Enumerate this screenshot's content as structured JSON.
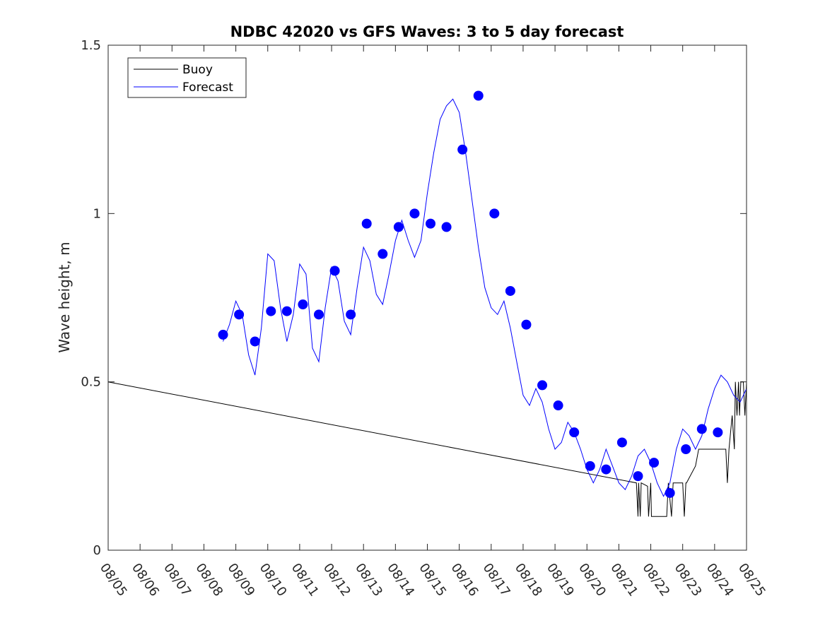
{
  "chart_data": {
    "type": "line",
    "title": "NDBC 42020 vs GFS Waves: 3 to 5 day forecast",
    "xlabel": "",
    "ylabel": "Wave height, m",
    "x_unit": "days since 08/05",
    "xlim": [
      0,
      20
    ],
    "ylim": [
      0,
      1.5
    ],
    "yticks": [
      0,
      0.5,
      1,
      1.5
    ],
    "ytick_labels": [
      "0",
      "0.5",
      "1",
      "1.5"
    ],
    "xtick_labels": [
      "08/05",
      "08/06",
      "08/07",
      "08/08",
      "08/09",
      "08/10",
      "08/11",
      "08/12",
      "08/13",
      "08/14",
      "08/15",
      "08/16",
      "08/17",
      "08/18",
      "08/19",
      "08/20",
      "08/21",
      "08/22",
      "08/23",
      "08/24",
      "08/25"
    ],
    "legend": {
      "location": "top-left",
      "entries": [
        {
          "name": "Buoy",
          "color": "#000000"
        },
        {
          "name": "Forecast",
          "color": "#0000ff"
        }
      ]
    },
    "series": [
      {
        "name": "Buoy",
        "color": "#000000",
        "x": [
          0.0,
          16.55,
          16.6,
          16.62,
          16.67,
          16.7,
          16.9,
          16.93,
          17.0,
          17.02,
          17.5,
          17.55,
          17.65,
          17.7,
          18.0,
          18.05,
          18.1,
          18.12,
          18.4,
          18.5,
          18.6,
          18.9,
          19.0,
          19.35,
          19.4,
          19.45,
          19.5,
          19.55,
          19.62,
          19.65,
          19.7,
          19.75,
          19.78,
          19.82,
          19.9,
          19.95,
          20.0
        ],
        "y": [
          0.5,
          0.2,
          0.1,
          0.2,
          0.1,
          0.2,
          0.19,
          0.1,
          0.2,
          0.1,
          0.1,
          0.2,
          0.1,
          0.2,
          0.2,
          0.1,
          0.2,
          0.2,
          0.25,
          0.3,
          0.3,
          0.3,
          0.3,
          0.3,
          0.2,
          0.3,
          0.35,
          0.4,
          0.3,
          0.5,
          0.4,
          0.5,
          0.4,
          0.5,
          0.5,
          0.4,
          0.5
        ]
      },
      {
        "name": "Forecast",
        "color": "#0000ff",
        "x": [
          3.6,
          3.8,
          4.0,
          4.2,
          4.4,
          4.6,
          4.8,
          5.0,
          5.2,
          5.4,
          5.6,
          5.8,
          6.0,
          6.2,
          6.4,
          6.6,
          6.8,
          7.0,
          7.2,
          7.4,
          7.6,
          7.8,
          8.0,
          8.2,
          8.4,
          8.6,
          8.8,
          9.0,
          9.2,
          9.4,
          9.6,
          9.8,
          10.0,
          10.2,
          10.4,
          10.6,
          10.8,
          11.0,
          11.2,
          11.4,
          11.6,
          11.8,
          12.0,
          12.2,
          12.4,
          12.6,
          12.8,
          13.0,
          13.2,
          13.4,
          13.6,
          13.8,
          14.0,
          14.2,
          14.4,
          14.6,
          14.8,
          15.0,
          15.2,
          15.4,
          15.6,
          15.8,
          16.0,
          16.2,
          16.4,
          16.6,
          16.8,
          17.0,
          17.2,
          17.4,
          17.6,
          17.8,
          18.0,
          18.2,
          18.4,
          18.6,
          18.8,
          19.0,
          19.2,
          19.4,
          19.6,
          19.8,
          20.0
        ],
        "y": [
          0.62,
          0.67,
          0.74,
          0.7,
          0.58,
          0.52,
          0.66,
          0.88,
          0.86,
          0.72,
          0.62,
          0.7,
          0.85,
          0.82,
          0.6,
          0.56,
          0.72,
          0.84,
          0.8,
          0.68,
          0.64,
          0.78,
          0.9,
          0.86,
          0.76,
          0.73,
          0.82,
          0.92,
          0.98,
          0.92,
          0.87,
          0.92,
          1.06,
          1.18,
          1.28,
          1.32,
          1.34,
          1.3,
          1.18,
          1.04,
          0.9,
          0.78,
          0.72,
          0.7,
          0.74,
          0.66,
          0.56,
          0.46,
          0.43,
          0.48,
          0.44,
          0.36,
          0.3,
          0.32,
          0.38,
          0.35,
          0.3,
          0.24,
          0.2,
          0.24,
          0.3,
          0.25,
          0.2,
          0.18,
          0.22,
          0.28,
          0.3,
          0.26,
          0.2,
          0.16,
          0.2,
          0.3,
          0.36,
          0.34,
          0.3,
          0.34,
          0.42,
          0.48,
          0.52,
          0.5,
          0.46,
          0.44,
          0.48
        ]
      }
    ],
    "markers": {
      "name": "Forecast points",
      "color": "#0000ff",
      "x": [
        3.6,
        4.1,
        4.6,
        5.1,
        5.6,
        6.1,
        6.6,
        7.1,
        7.6,
        8.1,
        8.6,
        9.1,
        9.6,
        10.1,
        10.6,
        11.1,
        11.6,
        12.1,
        12.6,
        13.1,
        13.6,
        14.1,
        14.6,
        15.1,
        15.6,
        16.1,
        16.6,
        17.1,
        17.6,
        18.1,
        18.6,
        19.1
      ],
      "y": [
        0.64,
        0.7,
        0.62,
        0.71,
        0.71,
        0.73,
        0.7,
        0.83,
        0.7,
        0.97,
        0.88,
        0.96,
        1.0,
        0.97,
        0.96,
        1.19,
        1.35,
        1.0,
        0.77,
        0.67,
        0.49,
        0.43,
        0.35,
        0.25,
        0.24,
        0.32,
        0.22,
        0.26,
        0.17,
        0.3,
        0.36,
        0.35
      ]
    }
  }
}
